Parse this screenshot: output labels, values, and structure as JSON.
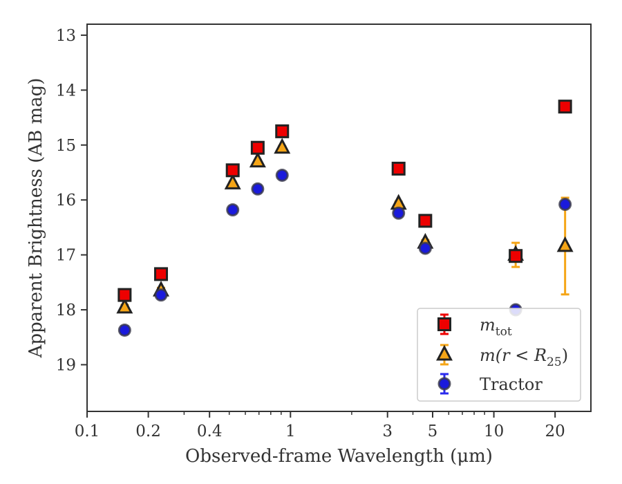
{
  "chart_data": {
    "type": "scatter",
    "title": "",
    "xlabel": "Observed-frame Wavelength (μm)",
    "ylabel": "Apparent Brightness (AB mag)",
    "xscale": "log",
    "xlim": [
      0.1,
      30
    ],
    "ylim": [
      19.85,
      12.8
    ],
    "y_inverted": true,
    "x_ticks": [
      0.1,
      0.2,
      0.4,
      1,
      3,
      5,
      10,
      20
    ],
    "x_tick_labels": [
      "0.1",
      "0.2",
      "0.4",
      "1",
      "3",
      "5",
      "10",
      "20"
    ],
    "y_ticks": [
      13,
      14,
      15,
      16,
      17,
      18,
      19
    ],
    "y_tick_labels": [
      "13",
      "14",
      "15",
      "16",
      "17",
      "18",
      "19"
    ],
    "grid": false,
    "legend_position": "lower right",
    "series": [
      {
        "name": "m_tot",
        "marker": "square",
        "color": "#ee0000",
        "edge": "#222222",
        "error_color": "#ee0000",
        "points": [
          {
            "x": 0.153,
            "y": 17.73,
            "err": 0.05
          },
          {
            "x": 0.231,
            "y": 17.35,
            "err": 0.04
          },
          {
            "x": 0.52,
            "y": 15.46,
            "err": 0.03
          },
          {
            "x": 0.69,
            "y": 15.05,
            "err": 0.03
          },
          {
            "x": 0.91,
            "y": 14.75,
            "err": 0.03
          },
          {
            "x": 3.4,
            "y": 15.43,
            "err": 0.03
          },
          {
            "x": 4.6,
            "y": 16.38,
            "err": 0.03
          },
          {
            "x": 12.8,
            "y": 17.02,
            "err": 0.03
          },
          {
            "x": 22.4,
            "y": 14.3,
            "err": 0.03
          }
        ]
      },
      {
        "name": "m(r < R25)",
        "marker": "triangle",
        "color": "#f5a516",
        "edge": "#222222",
        "error_color": "#f5a516",
        "points": [
          {
            "x": 0.153,
            "y": 17.96,
            "err": 0.05
          },
          {
            "x": 0.231,
            "y": 17.65,
            "err": 0.05
          },
          {
            "x": 0.52,
            "y": 15.7,
            "err": 0.03
          },
          {
            "x": 0.69,
            "y": 15.3,
            "err": 0.03
          },
          {
            "x": 0.91,
            "y": 15.05,
            "err": 0.03
          },
          {
            "x": 3.4,
            "y": 16.07,
            "err": 0.04
          },
          {
            "x": 4.6,
            "y": 16.78,
            "err": 0.05
          },
          {
            "x": 12.8,
            "y": 17.0,
            "err": 0.22
          },
          {
            "x": 22.4,
            "y": 16.84,
            "err": 0.88
          }
        ]
      },
      {
        "name": "Tractor",
        "marker": "circle",
        "color": "#1a1adc",
        "edge": "#3a3a4a",
        "error_color": "#2a2aee",
        "points": [
          {
            "x": 0.153,
            "y": 18.37,
            "err": 0.07
          },
          {
            "x": 0.231,
            "y": 17.73,
            "err": 0.06
          },
          {
            "x": 0.52,
            "y": 16.18,
            "err": 0.06
          },
          {
            "x": 0.69,
            "y": 15.8,
            "err": 0.06
          },
          {
            "x": 0.91,
            "y": 15.55,
            "err": 0.05
          },
          {
            "x": 3.4,
            "y": 16.24,
            "err": 0.05
          },
          {
            "x": 4.6,
            "y": 16.88,
            "err": 0.04
          },
          {
            "x": 12.8,
            "y": 18.0,
            "err": 0.05
          },
          {
            "x": 22.4,
            "y": 16.08,
            "err": 0.05
          }
        ]
      }
    ],
    "legend": [
      {
        "marker": "square",
        "label_base": "m",
        "label_sub": "tot"
      },
      {
        "marker": "triangle",
        "label_base": "m",
        "label_rest": "(r < R",
        "label_sub": "25",
        "label_close": ")"
      },
      {
        "marker": "circle",
        "label_plain": "Tractor"
      }
    ]
  }
}
